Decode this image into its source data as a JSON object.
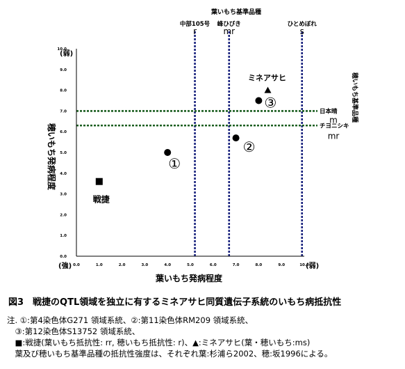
{
  "chart_data": {
    "type": "scatter",
    "title": "図3　戦捷のQTL領域を独立に有するミネアサヒ同質遺伝子系統のいもち病抵抗性",
    "xlabel": "葉いもち発病程度",
    "ylabel": "穂いもち発病程度",
    "xlim": [
      0,
      10
    ],
    "ylim": [
      0,
      10
    ],
    "xticks": [
      "0.0",
      "1.0",
      "2.0",
      "3.0",
      "4.0",
      "5.0",
      "6.0",
      "7.0",
      "8.0",
      "9.0",
      "10.0"
    ],
    "yticks": [
      "0.0",
      "1.0",
      "2.0",
      "3.0",
      "4.0",
      "5.0",
      "6.0",
      "7.0",
      "8.0",
      "9.0",
      "10.0"
    ],
    "x_strong": "(強)",
    "x_weak": "(弱)",
    "y_weak": "(弱)",
    "points": [
      {
        "label": "戦捷",
        "x": 1.0,
        "y": 3.6,
        "marker": "square"
      },
      {
        "label": "①",
        "x": 4.0,
        "y": 5.0,
        "marker": "circle"
      },
      {
        "label": "②",
        "x": 7.0,
        "y": 5.7,
        "marker": "circle"
      },
      {
        "label": "③",
        "x": 8.0,
        "y": 7.5,
        "marker": "circle"
      },
      {
        "label": "ミネアサヒ",
        "x": 8.4,
        "y": 8.0,
        "marker": "triangle"
      }
    ],
    "leaf_standard_title": "葉いもち基準品種",
    "leaf_standards": [
      {
        "name": "中部105号",
        "grade": "r",
        "x": 5.2
      },
      {
        "name": "峰ひびき",
        "grade": "mr",
        "x": 6.7
      },
      {
        "name": "ひとめぼれ",
        "grade": "s",
        "x": 9.9
      }
    ],
    "panicle_standard_title": "穂いもち基準品種",
    "panicle_standards": [
      {
        "name": "日本晴",
        "grade": "m",
        "y": 7.0
      },
      {
        "name": "チヨニシキ",
        "grade": "mr",
        "y": 6.3
      }
    ]
  },
  "notes": [
    "注. ①:第4染色体G271 領域系統、②:第11染色体RM209 領域系統、",
    "　③:第12染色体S13752 領域系統、",
    "　■:戦捷(葉いもち抵抗性: rr, 穂いもち抵抗性: r)、▲:ミネアサヒ(葉・穂いもち:ms)",
    "　葉及び穂いもち基準品種の抵抗性強度は、それぞれ葉:杉浦ら2002、穂:坂1996による。"
  ]
}
